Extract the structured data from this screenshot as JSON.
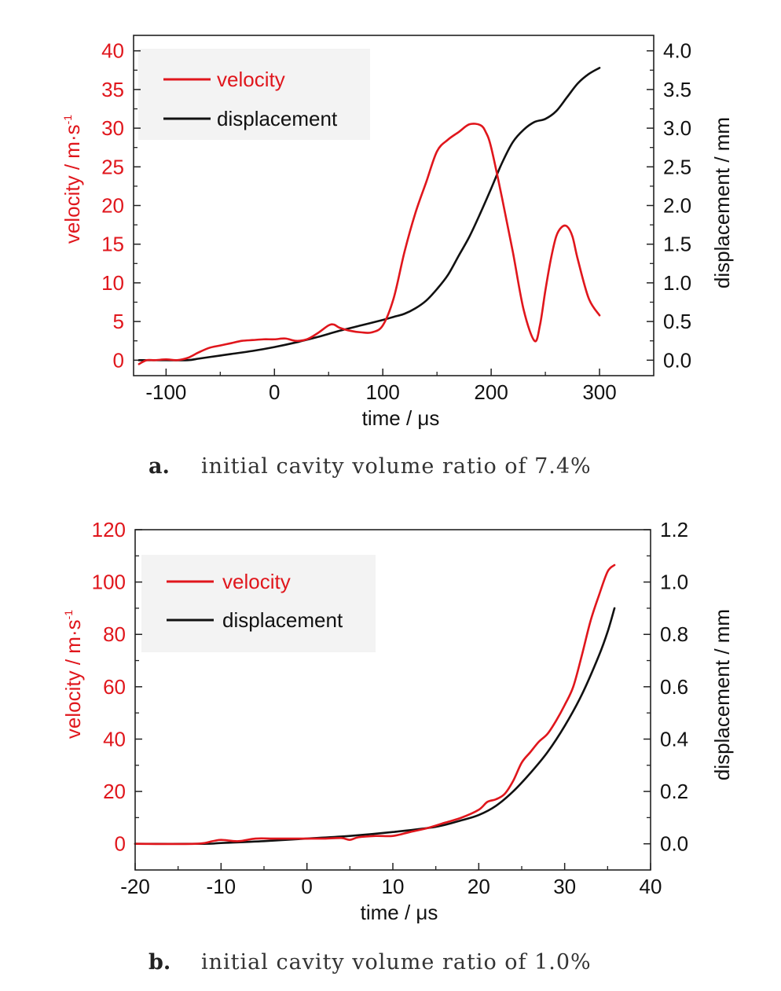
{
  "colors": {
    "velocity": "#e0161c",
    "displacement": "#111111",
    "axis": "#222222"
  },
  "chart_data": [
    {
      "panel_label": "a.",
      "caption": "initial cavity volume ratio of 7.4%",
      "type": "line",
      "xlabel": "time / μs",
      "ylabel_left": "velocity / m·s",
      "ylabel_left_sup": "-1",
      "ylabel_right": "displacement / mm",
      "xlim": [
        -130,
        350
      ],
      "ylim_left": [
        -2,
        42
      ],
      "ylim_right": [
        -0.2,
        4.2
      ],
      "x_ticks": [
        -100,
        0,
        100,
        200,
        300
      ],
      "x_tick_labels": [
        "-100",
        "0",
        "100",
        "200",
        "300"
      ],
      "x_minor_ticks": [
        -50,
        50,
        150,
        250
      ],
      "y_left_ticks": [
        0,
        5,
        10,
        15,
        20,
        25,
        30,
        35,
        40
      ],
      "y_left_tick_labels": [
        "0",
        "5",
        "10",
        "15",
        "20",
        "25",
        "30",
        "35",
        "40"
      ],
      "y_right_ticks": [
        0,
        0.5,
        1.0,
        1.5,
        2.0,
        2.5,
        3.0,
        3.5,
        4.0
      ],
      "y_right_tick_labels": [
        "0.0",
        "0.5",
        "1.0",
        "1.5",
        "2.0",
        "2.5",
        "3.0",
        "3.5",
        "4.0"
      ],
      "legend_position": "top-left",
      "series": [
        {
          "name": "velocity",
          "axis": "left",
          "x": [
            -125,
            -118,
            -110,
            -100,
            -90,
            -80,
            -70,
            -60,
            -50,
            -40,
            -30,
            -20,
            -10,
            0,
            10,
            20,
            30,
            40,
            50,
            55,
            60,
            70,
            80,
            90,
            100,
            110,
            120,
            130,
            140,
            150,
            160,
            170,
            180,
            190,
            195,
            200,
            210,
            220,
            230,
            240,
            245,
            250,
            255,
            260,
            265,
            270,
            275,
            280,
            290,
            300
          ],
          "y": [
            -0.5,
            0,
            0,
            0.1,
            0,
            0.3,
            1,
            1.6,
            1.9,
            2.2,
            2.5,
            2.6,
            2.7,
            2.7,
            2.8,
            2.5,
            2.7,
            3.5,
            4.5,
            4.6,
            4.2,
            3.8,
            3.6,
            3.6,
            4.5,
            8,
            14,
            19,
            23,
            27,
            28.5,
            29.5,
            30.5,
            30.4,
            29.5,
            27.5,
            21,
            14,
            6.5,
            2.5,
            4.5,
            9,
            13,
            16,
            17.2,
            17.3,
            16,
            13,
            8,
            5.8
          ]
        },
        {
          "name": "displacement",
          "axis": "right",
          "x": [
            -125,
            -100,
            -80,
            -70,
            -60,
            -50,
            -40,
            -20,
            0,
            20,
            40,
            60,
            80,
            100,
            110,
            120,
            130,
            140,
            150,
            160,
            170,
            180,
            190,
            200,
            210,
            220,
            230,
            240,
            250,
            260,
            270,
            280,
            290,
            300
          ],
          "y": [
            0,
            0,
            0,
            0.02,
            0.04,
            0.06,
            0.08,
            0.12,
            0.17,
            0.23,
            0.3,
            0.38,
            0.45,
            0.52,
            0.56,
            0.6,
            0.67,
            0.77,
            0.92,
            1.1,
            1.35,
            1.6,
            1.9,
            2.22,
            2.55,
            2.82,
            2.98,
            3.08,
            3.12,
            3.22,
            3.4,
            3.58,
            3.7,
            3.78
          ]
        }
      ]
    },
    {
      "panel_label": "b.",
      "caption": "initial cavity volume ratio of 1.0%",
      "type": "line",
      "xlabel": "time / μs",
      "ylabel_left": "velocity / m·s",
      "ylabel_left_sup": "-1",
      "ylabel_right": "displacement / mm",
      "xlim": [
        -20,
        40
      ],
      "ylim_left": [
        -10,
        120
      ],
      "ylim_right": [
        -0.1,
        1.2
      ],
      "x_ticks": [
        -20,
        -10,
        0,
        10,
        20,
        30,
        40
      ],
      "x_tick_labels": [
        "-20",
        "-10",
        "0",
        "10",
        "20",
        "30",
        "40"
      ],
      "x_minor_ticks": [
        -15,
        -5,
        5,
        15,
        25,
        35
      ],
      "y_left_ticks": [
        0,
        20,
        40,
        60,
        80,
        100,
        120
      ],
      "y_left_tick_labels": [
        "0",
        "20",
        "40",
        "60",
        "80",
        "100",
        "120"
      ],
      "y_right_ticks": [
        0,
        0.2,
        0.4,
        0.6,
        0.8,
        1.0,
        1.2
      ],
      "y_right_tick_labels": [
        "0.0",
        "0.2",
        "0.4",
        "0.6",
        "0.8",
        "1.0",
        "1.2"
      ],
      "legend_position": "top-left",
      "series": [
        {
          "name": "velocity",
          "axis": "left",
          "x": [
            -20,
            -13,
            -11,
            -10,
            -8,
            -6,
            -4,
            -2,
            0,
            2,
            4,
            5,
            6,
            8,
            10,
            12,
            14,
            16,
            18,
            20,
            21,
            22,
            23,
            24,
            25,
            26,
            27,
            28,
            29,
            30,
            31,
            32,
            33,
            34,
            35,
            35.8
          ],
          "y": [
            0,
            0,
            1,
            1.5,
            1,
            2,
            2,
            2,
            2,
            2,
            2.2,
            1.5,
            2.5,
            3,
            3,
            4.5,
            6,
            8,
            10,
            13,
            16,
            17,
            19,
            24,
            31,
            35,
            39,
            42,
            47,
            53,
            60,
            72,
            85,
            95,
            104,
            106.5
          ]
        },
        {
          "name": "displacement",
          "axis": "right",
          "x": [
            -20,
            -12,
            -10,
            -5,
            0,
            5,
            10,
            15,
            18,
            20,
            22,
            24,
            26,
            28,
            30,
            32,
            34,
            35,
            35.8
          ],
          "y": [
            0,
            0,
            0.003,
            0.01,
            0.02,
            0.03,
            0.045,
            0.065,
            0.09,
            0.11,
            0.145,
            0.2,
            0.27,
            0.35,
            0.45,
            0.57,
            0.72,
            0.81,
            0.9
          ]
        }
      ]
    }
  ]
}
